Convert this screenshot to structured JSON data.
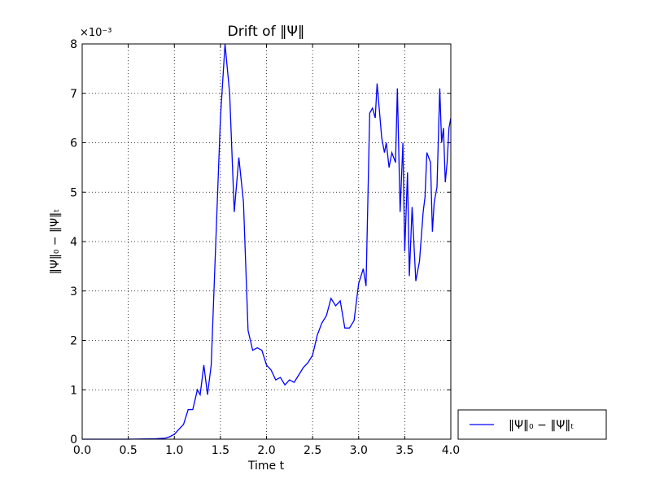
{
  "chart_data": {
    "type": "line",
    "title": "Drift of ‖Ψ‖",
    "x_label": "Time t",
    "y_label": "‖Ψ‖₀ − ‖Ψ‖ₜ",
    "y_offset_label": "×10⁻³",
    "x": [
      0,
      0.5,
      0.8,
      0.9,
      0.95,
      1.0,
      1.05,
      1.1,
      1.15,
      1.2,
      1.25,
      1.28,
      1.32,
      1.36,
      1.4,
      1.45,
      1.5,
      1.55,
      1.6,
      1.65,
      1.7,
      1.75,
      1.8,
      1.85,
      1.9,
      1.95,
      2.0,
      2.05,
      2.1,
      2.15,
      2.2,
      2.25,
      2.3,
      2.35,
      2.4,
      2.45,
      2.5,
      2.55,
      2.6,
      2.65,
      2.7,
      2.75,
      2.8,
      2.85,
      2.9,
      2.95,
      3.0,
      3.05,
      3.08,
      3.12,
      3.15,
      3.18,
      3.2,
      3.25,
      3.28,
      3.3,
      3.33,
      3.36,
      3.4,
      3.42,
      3.45,
      3.48,
      3.5,
      3.53,
      3.55,
      3.58,
      3.62,
      3.66,
      3.7,
      3.72,
      3.74,
      3.78,
      3.8,
      3.82,
      3.85,
      3.88,
      3.9,
      3.92,
      3.94,
      3.96,
      3.98,
      4.0
    ],
    "series": [
      {
        "name": "‖Ψ‖₀ − ‖Ψ‖ₜ",
        "color": "#0000ff",
        "values": [
          0,
          0,
          0.01,
          0.02,
          0.05,
          0.1,
          0.2,
          0.3,
          0.6,
          0.6,
          1.0,
          0.9,
          1.5,
          0.9,
          1.5,
          4.0,
          6.5,
          8.0,
          7.0,
          4.6,
          5.7,
          4.8,
          2.2,
          1.8,
          1.85,
          1.8,
          1.5,
          1.4,
          1.2,
          1.25,
          1.1,
          1.2,
          1.15,
          1.3,
          1.45,
          1.55,
          1.7,
          2.1,
          2.35,
          2.5,
          2.85,
          2.7,
          2.8,
          2.25,
          2.25,
          2.4,
          3.15,
          3.45,
          3.1,
          6.6,
          6.7,
          6.5,
          7.2,
          6.1,
          5.8,
          6.0,
          5.5,
          5.8,
          5.6,
          7.1,
          4.6,
          6.0,
          3.8,
          5.4,
          3.3,
          4.7,
          3.2,
          3.6,
          4.6,
          4.9,
          5.8,
          5.6,
          4.2,
          4.8,
          5.1,
          7.1,
          6.0,
          6.3,
          5.2,
          5.6,
          6.3,
          6.5
        ]
      }
    ],
    "xlim": [
      0,
      4
    ],
    "ylim": [
      0,
      8
    ],
    "xticks": [
      {
        "value": 0,
        "label": "0.0"
      },
      {
        "value": 0.5,
        "label": "0.5"
      },
      {
        "value": 1,
        "label": "1.0"
      },
      {
        "value": 1.5,
        "label": "1.5"
      },
      {
        "value": 2,
        "label": "2.0"
      },
      {
        "value": 2.5,
        "label": "2.5"
      },
      {
        "value": 3,
        "label": "3.0"
      },
      {
        "value": 3.5,
        "label": "3.5"
      },
      {
        "value": 4,
        "label": "4.0"
      }
    ],
    "yticks": [
      0,
      1,
      2,
      3,
      4,
      5,
      6,
      7,
      8
    ],
    "grid": true,
    "legend": "outside-lower-right"
  }
}
